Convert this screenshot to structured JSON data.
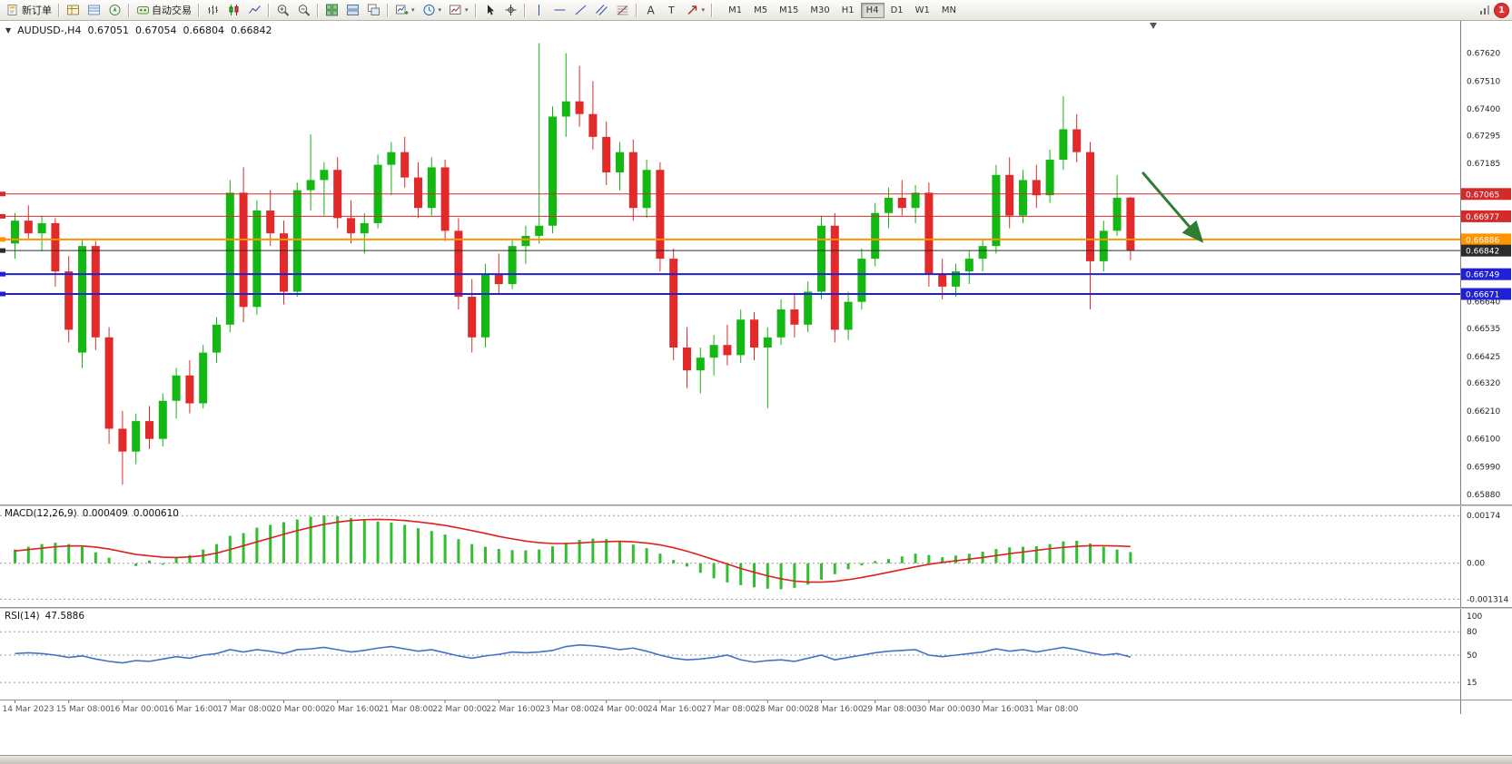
{
  "colors": {
    "up": "#13b813",
    "down": "#e32a2a",
    "macd_hist": "#2fbf2f",
    "macd_signal": "#dd2222",
    "rsi": "#4372c4",
    "axis_text": "#222222",
    "time_text": "#555555",
    "arrow": "#2e7d32"
  },
  "toolbar": {
    "buttons": [
      {
        "name": "new-order-button",
        "icon": "new-order",
        "label": "新订单"
      },
      {
        "sep": true
      },
      {
        "name": "market-watch-button",
        "icon": "market-watch"
      },
      {
        "name": "data-window-button",
        "icon": "data-window"
      },
      {
        "name": "navigator-button",
        "icon": "navigator"
      },
      {
        "sep": true
      },
      {
        "name": "auto-trading-button",
        "icon": "auto-trading",
        "label": "自动交易"
      },
      {
        "sep": true
      },
      {
        "name": "bar-chart-button",
        "icon": "bar-chart"
      },
      {
        "name": "candlestick-chart-button",
        "icon": "candlestick"
      },
      {
        "name": "line-chart-button",
        "icon": "line-chart"
      },
      {
        "sep": true
      },
      {
        "name": "zoom-in-button",
        "icon": "zoom-in"
      },
      {
        "name": "zoom-out-button",
        "icon": "zoom-out"
      },
      {
        "sep": true
      },
      {
        "name": "tile-windows-button",
        "icon": "tile-windows"
      },
      {
        "name": "tile-horizontal-button",
        "icon": "tile-horizontal"
      },
      {
        "name": "cascade-windows-button",
        "icon": "cascade-windows"
      },
      {
        "sep": true
      },
      {
        "name": "new-chart-button",
        "icon": "new-chart",
        "dropdown": true
      },
      {
        "name": "profiles-button",
        "icon": "profiles",
        "dropdown": true
      },
      {
        "name": "templates-button",
        "icon": "templates",
        "dropdown": true
      },
      {
        "sep": true
      },
      {
        "name": "cursor-button",
        "icon": "cursor"
      },
      {
        "name": "crosshair-button",
        "icon": "crosshair"
      },
      {
        "sep": true
      },
      {
        "name": "vertical-line-button",
        "icon": "vertical-line"
      },
      {
        "name": "horizontal-line-button",
        "icon": "horizontal-line"
      },
      {
        "name": "trendline-button",
        "icon": "trendline"
      },
      {
        "name": "channel-button",
        "icon": "channel"
      },
      {
        "name": "fibonacci-button",
        "icon": "fibonacci"
      },
      {
        "sep": true
      },
      {
        "name": "text-tool-button",
        "icon": "text"
      },
      {
        "name": "label-tool-button",
        "icon": "label"
      },
      {
        "name": "arrows-tool-button",
        "icon": "arrows",
        "dropdown": true
      },
      {
        "sep": true
      }
    ],
    "timeframes": [
      "M1",
      "M5",
      "M15",
      "M30",
      "H1",
      "H4",
      "D1",
      "W1",
      "MN"
    ],
    "active_timeframe": "H4",
    "badge_count": "1"
  },
  "chart": {
    "title_symbol_tf": "AUDUSD-,H4",
    "ohlc": {
      "open": "0.67051",
      "high": "0.67054",
      "low": "0.66804",
      "close": "0.66842"
    }
  },
  "indicators": {
    "macd_label": "MACD(12,26,9)",
    "macd_main": "0.000409",
    "macd_signal": "0.000610",
    "rsi_label": "RSI(14)",
    "rsi_value": "47.5886"
  },
  "chart_data": [
    {
      "type": "candlestick",
      "symbol": "AUDUSD-",
      "timeframe": "H4",
      "ylim": [
        0.6587,
        0.6769
      ],
      "axis_ticks": [
        {
          "value": 0.6762,
          "label": "0.67620"
        },
        {
          "value": 0.6751,
          "label": "0.67510"
        },
        {
          "value": 0.674,
          "label": "0.67400"
        },
        {
          "value": 0.67295,
          "label": "0.67295"
        },
        {
          "value": 0.67185,
          "label": "0.67185"
        },
        {
          "value": 0.6664,
          "label": "0.66640"
        },
        {
          "value": 0.66535,
          "label": "0.66535"
        },
        {
          "value": 0.66425,
          "label": "0.66425"
        },
        {
          "value": 0.6632,
          "label": "0.66320"
        },
        {
          "value": 0.6621,
          "label": "0.66210"
        },
        {
          "value": 0.661,
          "label": "0.66100"
        },
        {
          "value": 0.6599,
          "label": "0.65990"
        },
        {
          "value": 0.6588,
          "label": "0.65880"
        }
      ],
      "levels": [
        {
          "price": 0.67065,
          "label": "0.67065",
          "color": "#d42a2a",
          "thickness": 1
        },
        {
          "price": 0.66977,
          "label": "0.66977",
          "color": "#d42a2a",
          "thickness": 1
        },
        {
          "price": 0.66886,
          "label": "0.66886",
          "color": "#ff9300",
          "thickness": 2
        },
        {
          "price": 0.66842,
          "label": "0.66842",
          "color": "#2b2b2b",
          "thickness": 1
        },
        {
          "price": 0.66749,
          "label": "0.66749",
          "color": "#2020d6",
          "thickness": 2
        },
        {
          "price": 0.66671,
          "label": "0.66671",
          "color": "#2020d6",
          "thickness": 2
        }
      ],
      "candles": [
        [
          0.6687,
          0.6699,
          0.6681,
          0.6696
        ],
        [
          0.6696,
          0.6702,
          0.6689,
          0.6691
        ],
        [
          0.6691,
          0.6698,
          0.6684,
          0.6695
        ],
        [
          0.6695,
          0.6697,
          0.667,
          0.6676
        ],
        [
          0.6676,
          0.6682,
          0.6648,
          0.6653
        ],
        [
          0.6644,
          0.6689,
          0.6638,
          0.6686
        ],
        [
          0.6686,
          0.6688,
          0.6645,
          0.665
        ],
        [
          0.665,
          0.6654,
          0.6608,
          0.6614
        ],
        [
          0.6614,
          0.6621,
          0.6592,
          0.6605
        ],
        [
          0.6605,
          0.662,
          0.66,
          0.6617
        ],
        [
          0.6617,
          0.6623,
          0.6606,
          0.661
        ],
        [
          0.661,
          0.6628,
          0.6607,
          0.6625
        ],
        [
          0.6625,
          0.6638,
          0.6618,
          0.6635
        ],
        [
          0.6635,
          0.6641,
          0.662,
          0.6624
        ],
        [
          0.6624,
          0.6647,
          0.6622,
          0.6644
        ],
        [
          0.6644,
          0.6658,
          0.664,
          0.6655
        ],
        [
          0.6655,
          0.6712,
          0.6652,
          0.6707
        ],
        [
          0.6707,
          0.6717,
          0.6656,
          0.6662
        ],
        [
          0.6662,
          0.6704,
          0.6659,
          0.67
        ],
        [
          0.67,
          0.6708,
          0.6686,
          0.6691
        ],
        [
          0.6691,
          0.6696,
          0.6663,
          0.6668
        ],
        [
          0.6668,
          0.6711,
          0.6666,
          0.6708
        ],
        [
          0.6708,
          0.673,
          0.67,
          0.6712
        ],
        [
          0.6712,
          0.6719,
          0.6698,
          0.6716
        ],
        [
          0.6716,
          0.6721,
          0.6693,
          0.6697
        ],
        [
          0.6697,
          0.6704,
          0.6687,
          0.6691
        ],
        [
          0.6691,
          0.6699,
          0.6683,
          0.6695
        ],
        [
          0.6695,
          0.6722,
          0.6693,
          0.6718
        ],
        [
          0.6718,
          0.6727,
          0.6706,
          0.6723
        ],
        [
          0.6723,
          0.6729,
          0.6709,
          0.6713
        ],
        [
          0.6713,
          0.6719,
          0.6697,
          0.6701
        ],
        [
          0.6701,
          0.6721,
          0.6698,
          0.6717
        ],
        [
          0.6717,
          0.672,
          0.6688,
          0.6692
        ],
        [
          0.6692,
          0.6697,
          0.6661,
          0.6666
        ],
        [
          0.6666,
          0.6673,
          0.6644,
          0.665
        ],
        [
          0.665,
          0.6679,
          0.6646,
          0.6675
        ],
        [
          0.6675,
          0.6683,
          0.6667,
          0.6671
        ],
        [
          0.6671,
          0.6689,
          0.6669,
          0.6686
        ],
        [
          0.6686,
          0.6694,
          0.6679,
          0.669
        ],
        [
          0.669,
          0.6766,
          0.6687,
          0.6694
        ],
        [
          0.6694,
          0.6741,
          0.6691,
          0.6737
        ],
        [
          0.6737,
          0.6762,
          0.6729,
          0.6743
        ],
        [
          0.6743,
          0.6757,
          0.6733,
          0.6738
        ],
        [
          0.6738,
          0.6751,
          0.6724,
          0.6729
        ],
        [
          0.6729,
          0.6735,
          0.671,
          0.6715
        ],
        [
          0.6715,
          0.6727,
          0.6708,
          0.6723
        ],
        [
          0.6723,
          0.6728,
          0.6696,
          0.6701
        ],
        [
          0.6701,
          0.672,
          0.6697,
          0.6716
        ],
        [
          0.6716,
          0.6719,
          0.6676,
          0.6681
        ],
        [
          0.6681,
          0.6685,
          0.6641,
          0.6646
        ],
        [
          0.6646,
          0.6654,
          0.663,
          0.6637
        ],
        [
          0.6637,
          0.6646,
          0.6628,
          0.6642
        ],
        [
          0.6642,
          0.6651,
          0.6635,
          0.6647
        ],
        [
          0.6647,
          0.6655,
          0.6639,
          0.6643
        ],
        [
          0.6643,
          0.6661,
          0.664,
          0.6657
        ],
        [
          0.6657,
          0.666,
          0.6641,
          0.6646
        ],
        [
          0.6646,
          0.6654,
          0.6622,
          0.665
        ],
        [
          0.665,
          0.6665,
          0.6647,
          0.6661
        ],
        [
          0.6661,
          0.6667,
          0.665,
          0.6655
        ],
        [
          0.6655,
          0.6672,
          0.6652,
          0.6668
        ],
        [
          0.6668,
          0.6698,
          0.6665,
          0.6694
        ],
        [
          0.6694,
          0.6699,
          0.6648,
          0.6653
        ],
        [
          0.6653,
          0.6668,
          0.6649,
          0.6664
        ],
        [
          0.6664,
          0.6685,
          0.6661,
          0.6681
        ],
        [
          0.6681,
          0.6703,
          0.6678,
          0.6699
        ],
        [
          0.6699,
          0.6709,
          0.6693,
          0.6705
        ],
        [
          0.6705,
          0.6712,
          0.6698,
          0.6701
        ],
        [
          0.6701,
          0.671,
          0.6695,
          0.6707
        ],
        [
          0.6707,
          0.6711,
          0.667,
          0.6675
        ],
        [
          0.6675,
          0.6681,
          0.6665,
          0.667
        ],
        [
          0.667,
          0.6679,
          0.6666,
          0.6676
        ],
        [
          0.6676,
          0.6684,
          0.6671,
          0.6681
        ],
        [
          0.6681,
          0.6689,
          0.6676,
          0.6686
        ],
        [
          0.6686,
          0.6718,
          0.6683,
          0.6714
        ],
        [
          0.6714,
          0.6721,
          0.6693,
          0.6698
        ],
        [
          0.6698,
          0.6716,
          0.6695,
          0.6712
        ],
        [
          0.6712,
          0.6718,
          0.6701,
          0.6706
        ],
        [
          0.6706,
          0.6724,
          0.6703,
          0.672
        ],
        [
          0.672,
          0.6745,
          0.6716,
          0.6732
        ],
        [
          0.6732,
          0.6738,
          0.6719,
          0.6723
        ],
        [
          0.6723,
          0.6727,
          0.6661,
          0.668
        ],
        [
          0.668,
          0.6696,
          0.6676,
          0.6692
        ],
        [
          0.6692,
          0.6714,
          0.669,
          0.6705
        ],
        [
          0.67051,
          0.67054,
          0.66804,
          0.66842
        ]
      ],
      "time_labels": [
        "14 Mar 2023",
        "15 Mar 08:00",
        "16 Mar 00:00",
        "16 Mar 16:00",
        "17 Mar 08:00",
        "20 Mar 00:00",
        "20 Mar 16:00",
        "21 Mar 08:00",
        "22 Mar 00:00",
        "22 Mar 16:00",
        "23 Mar 08:00",
        "24 Mar 00:00",
        "24 Mar 16:00",
        "27 Mar 08:00",
        "28 Mar 00:00",
        "28 Mar 16:00",
        "29 Mar 08:00",
        "30 Mar 00:00",
        "30 Mar 16:00",
        "31 Mar 08:00"
      ],
      "label_every_bars": 4,
      "arrow": {
        "from_bar": 84.2,
        "from_price": 0.6715,
        "to_bar": 88.6,
        "to_price": 0.6688,
        "color": "#2e7d32"
      }
    },
    {
      "type": "bar",
      "name": "MACD(12,26,9)",
      "ylim": [
        -0.0014,
        0.00188
      ],
      "ticks": [
        {
          "value": 0.00174,
          "label": "0.00174"
        },
        {
          "value": 0,
          "label": "0.00"
        },
        {
          "value": -0.001314,
          "label": "-0.001314"
        }
      ],
      "values": [
        0.0005,
        0.0006,
        0.0007,
        0.00075,
        0.0007,
        0.0006,
        0.0004,
        0.0002,
        0.0,
        -0.0001,
        0.0001,
        -5e-05,
        0.0002,
        0.0003,
        0.0005,
        0.0007,
        0.001,
        0.0011,
        0.0013,
        0.0014,
        0.0015,
        0.0016,
        0.0017,
        0.00174,
        0.00172,
        0.00165,
        0.00158,
        0.00152,
        0.00148,
        0.0014,
        0.00128,
        0.00118,
        0.00105,
        0.00088,
        0.0007,
        0.0006,
        0.00052,
        0.00048,
        0.00047,
        0.0005,
        0.00062,
        0.00075,
        0.00085,
        0.0009,
        0.00088,
        0.0008,
        0.00068,
        0.00055,
        0.00035,
        0.00012,
        -0.00012,
        -0.00035,
        -0.00055,
        -0.0007,
        -0.0008,
        -0.00088,
        -0.00093,
        -0.00095,
        -0.0009,
        -0.00078,
        -0.0006,
        -0.0004,
        -0.00022,
        -8e-05,
        8e-05,
        0.00015,
        0.00025,
        0.00035,
        0.0003,
        0.00022,
        0.00028,
        0.00035,
        0.00042,
        0.00052,
        0.00058,
        0.0006,
        0.00062,
        0.0007,
        0.0008,
        0.00082,
        0.00072,
        0.0006,
        0.0005,
        0.000409
      ],
      "signal": [
        0.00045,
        0.0005,
        0.00055,
        0.0006,
        0.00063,
        0.00063,
        0.00059,
        0.00052,
        0.00042,
        0.00032,
        0.00027,
        0.00022,
        0.00021,
        0.00023,
        0.00028,
        0.00037,
        0.0005,
        0.00064,
        0.00078,
        0.00092,
        0.00106,
        0.00119,
        0.00131,
        0.00142,
        0.0015,
        0.00156,
        0.00159,
        0.0016,
        0.00159,
        0.00156,
        0.00151,
        0.00145,
        0.00138,
        0.00129,
        0.00119,
        0.00109,
        0.00098,
        0.00089,
        0.00081,
        0.00075,
        0.00072,
        0.00072,
        0.00074,
        0.00077,
        0.00079,
        0.0008,
        0.00078,
        0.00074,
        0.00067,
        0.00057,
        0.00044,
        0.00029,
        0.00013,
        -3e-05,
        -0.00019,
        -0.00033,
        -0.00046,
        -0.00057,
        -0.00065,
        -0.00069,
        -0.00069,
        -0.00066,
        -0.0006,
        -0.00052,
        -0.00043,
        -0.00033,
        -0.00023,
        -0.00013,
        -4e-05,
        3e-05,
        9e-05,
        0.00015,
        0.00021,
        0.00028,
        0.00035,
        0.00041,
        0.00047,
        0.00053,
        0.00058,
        0.00062,
        0.00064,
        0.00064,
        0.00063,
        0.00061
      ]
    },
    {
      "type": "line",
      "name": "RSI(14)",
      "ylim": [
        0,
        100
      ],
      "ticks": [
        {
          "value": 100,
          "label": "100",
          "line": false
        },
        {
          "value": 80,
          "label": "80",
          "line": true
        },
        {
          "value": 50,
          "label": "50",
          "line": true
        },
        {
          "value": 15,
          "label": "15",
          "line": true
        }
      ],
      "values": [
        52,
        53,
        52,
        50,
        47,
        49,
        45,
        42,
        40,
        43,
        42,
        45,
        48,
        46,
        50,
        52,
        57,
        54,
        57,
        55,
        52,
        57,
        58,
        60,
        57,
        54,
        56,
        59,
        61,
        58,
        55,
        57,
        53,
        49,
        46,
        49,
        51,
        54,
        53,
        54,
        56,
        61,
        63,
        62,
        60,
        57,
        59,
        55,
        50,
        46,
        44,
        45,
        47,
        50,
        44,
        41,
        43,
        44,
        42,
        46,
        50,
        44,
        47,
        50,
        53,
        55,
        56,
        57,
        50,
        48,
        50,
        52,
        54,
        58,
        55,
        57,
        54,
        57,
        60,
        57,
        53,
        50,
        52,
        47.5886
      ]
    }
  ]
}
